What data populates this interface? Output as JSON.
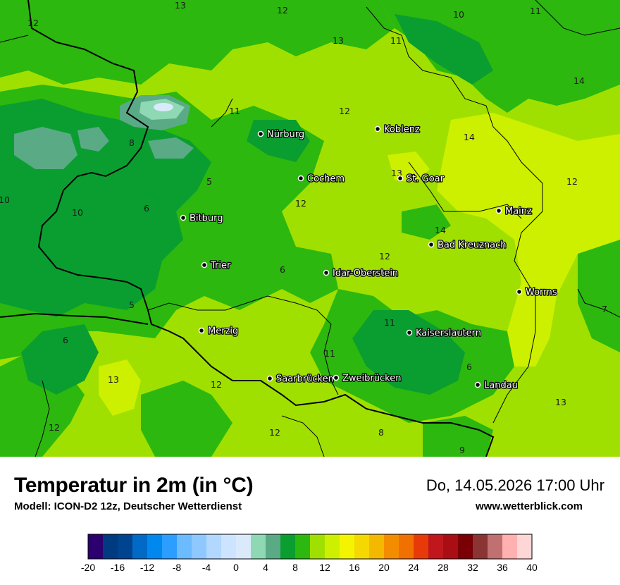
{
  "title": "Temperatur in 2m (in °C)",
  "model": "Modell: ICON-D2 12z, Deutscher Wetterdienst",
  "datetime": "Do, 14.05.2026 17:00 Uhr",
  "website": "www.wetterblick.com",
  "cities": [
    {
      "name": "Nürburg"
    },
    {
      "name": "Koblenz"
    },
    {
      "name": "Cochem"
    },
    {
      "name": "St. Goar"
    },
    {
      "name": "Bitburg"
    },
    {
      "name": "Mainz"
    },
    {
      "name": "Bad Kreuznach"
    },
    {
      "name": "Trier"
    },
    {
      "name": "Idar-Oberstein"
    },
    {
      "name": "Worms"
    },
    {
      "name": "Merzig"
    },
    {
      "name": "Kaiserslautern"
    },
    {
      "name": "Saarbrücken"
    },
    {
      "name": "Zweibrücken"
    },
    {
      "name": "Landau"
    }
  ],
  "isotherm_labels": [
    "13",
    "12",
    "12",
    "10",
    "11",
    "13",
    "11",
    "11",
    "12",
    "14",
    "8",
    "13",
    "5",
    "10",
    "6",
    "12",
    "14",
    "12",
    "12",
    "6",
    "14",
    "5",
    "11",
    "7",
    "6",
    "11",
    "6",
    "13",
    "12",
    "13",
    "12",
    "12",
    "8",
    "9",
    "10"
  ],
  "legend": {
    "ticks": [
      "-20",
      "-16",
      "-12",
      "-8",
      "-4",
      "0",
      "4",
      "8",
      "12",
      "16",
      "20",
      "24",
      "28",
      "32",
      "36",
      "40"
    ],
    "colors": [
      "#2c006e",
      "#003a80",
      "#00438f",
      "#006ac6",
      "#0088ee",
      "#2c9eff",
      "#6cbaff",
      "#8ec8ff",
      "#b2d8ff",
      "#cce4ff",
      "#daeafb",
      "#8ed8b4",
      "#5aaa86",
      "#0a9e30",
      "#2cb80e",
      "#a0e000",
      "#ccf000",
      "#f4f400",
      "#f4d800",
      "#f4b800",
      "#f48c00",
      "#f07000",
      "#e83a08",
      "#c0161c",
      "#a80e14",
      "#7a0006",
      "#8a3434",
      "#c07070",
      "#ffb0b0",
      "#ffd6d6"
    ]
  }
}
